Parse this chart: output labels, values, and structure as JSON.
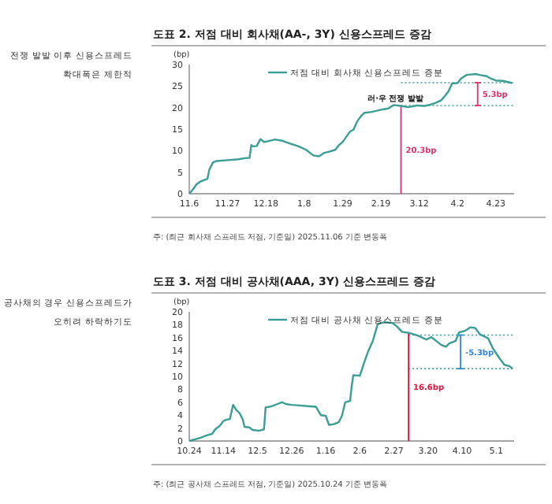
{
  "chart_data": [
    {
      "type": "line",
      "title": "도표 2. 저점 대비 회사채(AA-, 3Y) 신용스프레드 증감",
      "ylabel": "(bp)",
      "legend": "top",
      "grid": false,
      "x": [
        "2025-11-06",
        "2025-11-08",
        "2025-11-10",
        "2025-11-12",
        "2025-11-15",
        "2025-11-16",
        "2025-11-17",
        "2025-11-19",
        "2025-11-21",
        "2025-11-27",
        "2025-12-03",
        "2025-12-07",
        "2025-12-09",
        "2025-12-10",
        "2025-12-11",
        "2025-12-13",
        "2025-12-15",
        "2025-12-17",
        "2025-12-19",
        "2025-12-23",
        "2025-12-27",
        "2025-12-31",
        "2026-01-05",
        "2026-01-09",
        "2026-01-13",
        "2026-01-16",
        "2026-01-19",
        "2026-01-22",
        "2026-01-25",
        "2026-01-27",
        "2026-01-29",
        "2026-01-31",
        "2026-02-02",
        "2026-02-04",
        "2026-02-06",
        "2026-02-08",
        "2026-02-10",
        "2026-02-14",
        "2026-02-19",
        "2026-02-23",
        "2026-02-26",
        "2026-03-02",
        "2026-03-06",
        "2026-03-11",
        "2026-03-15",
        "2026-03-18",
        "2026-03-21",
        "2026-03-24",
        "2026-03-26",
        "2026-03-28",
        "2026-03-30",
        "2026-04-02",
        "2026-04-04",
        "2026-04-07",
        "2026-04-12",
        "2026-04-14",
        "2026-04-18",
        "2026-04-20",
        "2026-04-23",
        "2026-04-27",
        "2026-05-02"
      ],
      "series": [
        {
          "name": "저점 대비 회사채 신용스프레드 증분",
          "color": "#3a9e94",
          "values": [
            0,
            1,
            2.2,
            2.8,
            3.3,
            3.5,
            5.6,
            7.3,
            7.6,
            7.8,
            8.0,
            8.3,
            8.3,
            11.3,
            11,
            11.1,
            12.7,
            12,
            12.2,
            12.6,
            12.3,
            11.7,
            11,
            10.2,
            8.9,
            8.7,
            9.5,
            9.8,
            10.2,
            11.3,
            12,
            13.2,
            14.4,
            14.9,
            16.8,
            18,
            18.8,
            19,
            19.5,
            19.8,
            20.6,
            20.4,
            20.1,
            20.5,
            20.4,
            20.7,
            21.1,
            21.7,
            22.7,
            23.8,
            25.6,
            25.7,
            26.8,
            27.6,
            27.8,
            27.6,
            27.3,
            26.8,
            26.3,
            26.2,
            25.7
          ]
        }
      ],
      "xlim": [
        "2025-11-06",
        "2026-05-03"
      ],
      "xticks": [
        {
          "value": "2025-11-06",
          "label": "11.6"
        },
        {
          "value": "2025-11-27",
          "label": "11.27"
        },
        {
          "value": "2025-12-18",
          "label": "12.18"
        },
        {
          "value": "2026-01-08",
          "label": "1.8"
        },
        {
          "value": "2026-01-29",
          "label": "1.29"
        },
        {
          "value": "2026-02-19",
          "label": "2.19"
        },
        {
          "value": "2026-03-12",
          "label": "3.12"
        },
        {
          "value": "2026-04-02",
          "label": "4.2"
        },
        {
          "value": "2026-04-23",
          "label": "4.23"
        }
      ],
      "ylim": [
        0,
        30
      ],
      "yticks": [
        0,
        5,
        10,
        15,
        20,
        25,
        30
      ],
      "ref_lines": [
        {
          "axis": "x",
          "value": "2026-03-02",
          "label": "20.3bp",
          "color": "#e0306a"
        },
        {
          "axis": "x",
          "value": "2026-04-13",
          "label": "5.3bp",
          "color": "#e0306a"
        },
        {
          "axis": "y",
          "value": 25.8,
          "label": null,
          "color": "#3a9e94",
          "line_style": "dotted"
        },
        {
          "axis": "y",
          "value": 20.5,
          "label": null,
          "color": "#3a9e94",
          "line_style": "dotted"
        }
      ],
      "annotations": [
        "전쟁 발발 이후 신용스프레드\n확대폭은 제한적",
        "주: (최근 회사채 스프레드 저점, 기준일) 2025.11.06 기준 변동폭",
        {
          "text": "러·우 전쟁 발발",
          "x": "2026-02-27",
          "y": 22.2
        }
      ]
    },
    {
      "type": "line",
      "title": "도표 3. 저점 대비 공사채(AAA, 3Y) 신용스프레드 증감",
      "ylabel": "(bp)",
      "legend": "top",
      "grid": false,
      "x": [
        "2025-10-24",
        "2025-10-28",
        "2025-10-31",
        "2025-11-04",
        "2025-11-07",
        "2025-11-09",
        "2025-11-12",
        "2025-11-14",
        "2025-11-16",
        "2025-11-18",
        "2025-11-20",
        "2025-11-22",
        "2025-11-24",
        "2025-11-26",
        "2025-11-27",
        "2025-11-30",
        "2025-12-02",
        "2025-12-06",
        "2025-12-09",
        "2025-12-10",
        "2025-12-14",
        "2025-12-17",
        "2025-12-20",
        "2025-12-23",
        "2025-12-26",
        "2025-12-31",
        "2026-01-05",
        "2026-01-10",
        "2026-01-13",
        "2026-01-16",
        "2026-01-18",
        "2026-01-21",
        "2026-01-24",
        "2026-01-26",
        "2026-01-28",
        "2026-01-31",
        "2026-02-01",
        "2026-02-02",
        "2026-02-06",
        "2026-02-09",
        "2026-02-11",
        "2026-02-14",
        "2026-02-17",
        "2026-02-21",
        "2026-02-26",
        "2026-03-01",
        "2026-03-04",
        "2026-03-09",
        "2026-03-14",
        "2026-03-19",
        "2026-03-22",
        "2026-03-25",
        "2026-03-28",
        "2026-03-31",
        "2026-04-02",
        "2026-04-06",
        "2026-04-08",
        "2026-04-12",
        "2026-04-15",
        "2026-04-18",
        "2026-04-21",
        "2026-04-26",
        "2026-04-29",
        "2026-05-03",
        "2026-05-06",
        "2026-05-09",
        "2026-05-11"
      ],
      "series": [
        {
          "name": "저점 대비 공사채 신용스프레드 증분",
          "color": "#3a9e94",
          "values": [
            0,
            0.3,
            0.5,
            0.9,
            1.1,
            1.8,
            2.4,
            3.1,
            3.3,
            3.4,
            5.6,
            4.8,
            4.3,
            3.3,
            2.2,
            2.1,
            1.7,
            1.6,
            1.8,
            5.2,
            5.4,
            5.7,
            6.0,
            5.7,
            5.6,
            5.5,
            5.4,
            5.3,
            4.0,
            3.9,
            2.5,
            2.6,
            2.9,
            3.9,
            6.0,
            6.2,
            8.5,
            10.2,
            10.1,
            12.4,
            13.8,
            15.5,
            18.1,
            18.4,
            18.3,
            17.7,
            16.9,
            16.7,
            16.3,
            15.7,
            16.1,
            15.5,
            14.9,
            14.6,
            15.1,
            15.5,
            16.8,
            17.1,
            17.6,
            17.5,
            16.5,
            15.9,
            14.3,
            12.8,
            11.8,
            11.6,
            11.2
          ]
        }
      ],
      "xlim": [
        "2025-10-24",
        "2026-05-12"
      ],
      "xticks": [
        {
          "value": "2025-10-24",
          "label": "10.24"
        },
        {
          "value": "2025-11-14",
          "label": "11.14"
        },
        {
          "value": "2025-12-05",
          "label": "12.5"
        },
        {
          "value": "2025-12-26",
          "label": "12.26"
        },
        {
          "value": "2026-01-16",
          "label": "1.16"
        },
        {
          "value": "2026-02-06",
          "label": "2.6"
        },
        {
          "value": "2026-02-27",
          "label": "2.27"
        },
        {
          "value": "2026-03-20",
          "label": "3.20"
        },
        {
          "value": "2026-04-10",
          "label": "4.10"
        },
        {
          "value": "2026-05-01",
          "label": "5.1"
        }
      ],
      "ylim": [
        0,
        20
      ],
      "yticks": [
        0,
        2,
        4,
        6,
        8,
        10,
        12,
        14,
        16,
        18,
        20
      ],
      "ref_lines": [
        {
          "axis": "x",
          "value": "2026-03-08",
          "label": "16.6bp",
          "color": "#e8103a"
        },
        {
          "axis": "x",
          "value": "2026-04-09",
          "label": "-5.3bp",
          "color": "#2f86d6"
        },
        {
          "axis": "y",
          "value": 16.4,
          "label": null,
          "color": "#3a9e94",
          "line_style": "dotted"
        },
        {
          "axis": "y",
          "value": 11.2,
          "label": null,
          "color": "#3a9e94",
          "line_style": "dotted"
        }
      ],
      "annotations": [
        "공사채의 경우 신용스프레드가\n오히려 하락하기도",
        "주: (최근 공사채 스프레드 저점, 기준일) 2025.10.24 기준 변동폭"
      ]
    }
  ]
}
